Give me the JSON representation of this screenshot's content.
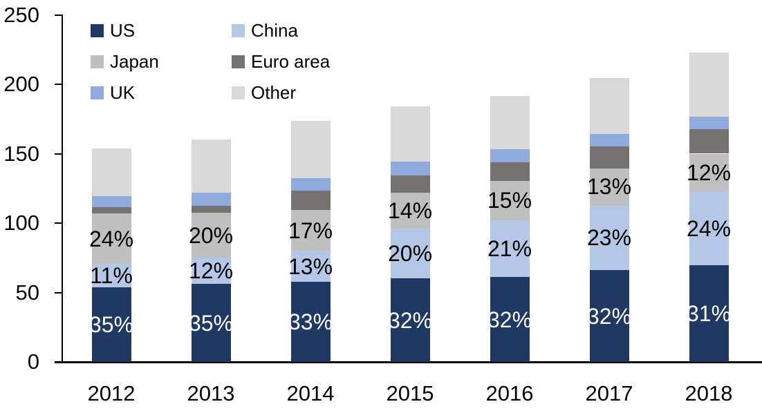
{
  "chart_data": {
    "type": "bar",
    "stacked": true,
    "title": "",
    "xlabel": "",
    "ylabel": "",
    "categories": [
      "2012",
      "2013",
      "2014",
      "2015",
      "2016",
      "2017",
      "2018"
    ],
    "series": [
      {
        "name": "US",
        "color": "#1F3864",
        "values": [
          53.5,
          56,
          57.5,
          60,
          61,
          66,
          69.5
        ],
        "labels": [
          "35%",
          "35%",
          "33%",
          "32%",
          "32%",
          "32%",
          "31%"
        ],
        "label_color": "#FFFFFF"
      },
      {
        "name": "China",
        "color": "#B4C7E7",
        "values": [
          17,
          19,
          22.5,
          36,
          41,
          47,
          53.5
        ],
        "labels": [
          "11%",
          "12%",
          "13%",
          "20%",
          "21%",
          "23%",
          "24%"
        ],
        "label_color": "#000000"
      },
      {
        "name": "Japan",
        "color": "#BFBFBF",
        "values": [
          36.5,
          32.5,
          29.5,
          26,
          28.5,
          26.5,
          27
        ],
        "labels": [
          "24%",
          "20%",
          "17%",
          "14%",
          "15%",
          "13%",
          "12%"
        ],
        "label_color": "#000000"
      },
      {
        "name": "Euro area",
        "color": "#767171",
        "values": [
          4.5,
          5,
          14,
          12.5,
          13.5,
          15.5,
          17.5
        ],
        "labels": null,
        "label_color": null
      },
      {
        "name": "UK",
        "color": "#8FAADC",
        "values": [
          8,
          9.5,
          9,
          10,
          9,
          9,
          9
        ],
        "labels": null,
        "label_color": null
      },
      {
        "name": "Other",
        "color": "#D9D9D9",
        "values": [
          34,
          38,
          41,
          39.5,
          38.5,
          40.5,
          46.5
        ],
        "labels": null,
        "label_color": null
      }
    ],
    "totals": [
      153.5,
      160,
      173.5,
      184,
      191.5,
      204.5,
      223
    ],
    "ylim": [
      0,
      250
    ],
    "yticks": [
      0,
      50,
      100,
      150,
      200,
      250
    ],
    "grid": false,
    "axis_color": "#000000",
    "legend": {
      "position": "top-left",
      "columns": 2,
      "order": [
        "US",
        "China",
        "Japan",
        "Euro area",
        "UK",
        "Other"
      ]
    }
  }
}
